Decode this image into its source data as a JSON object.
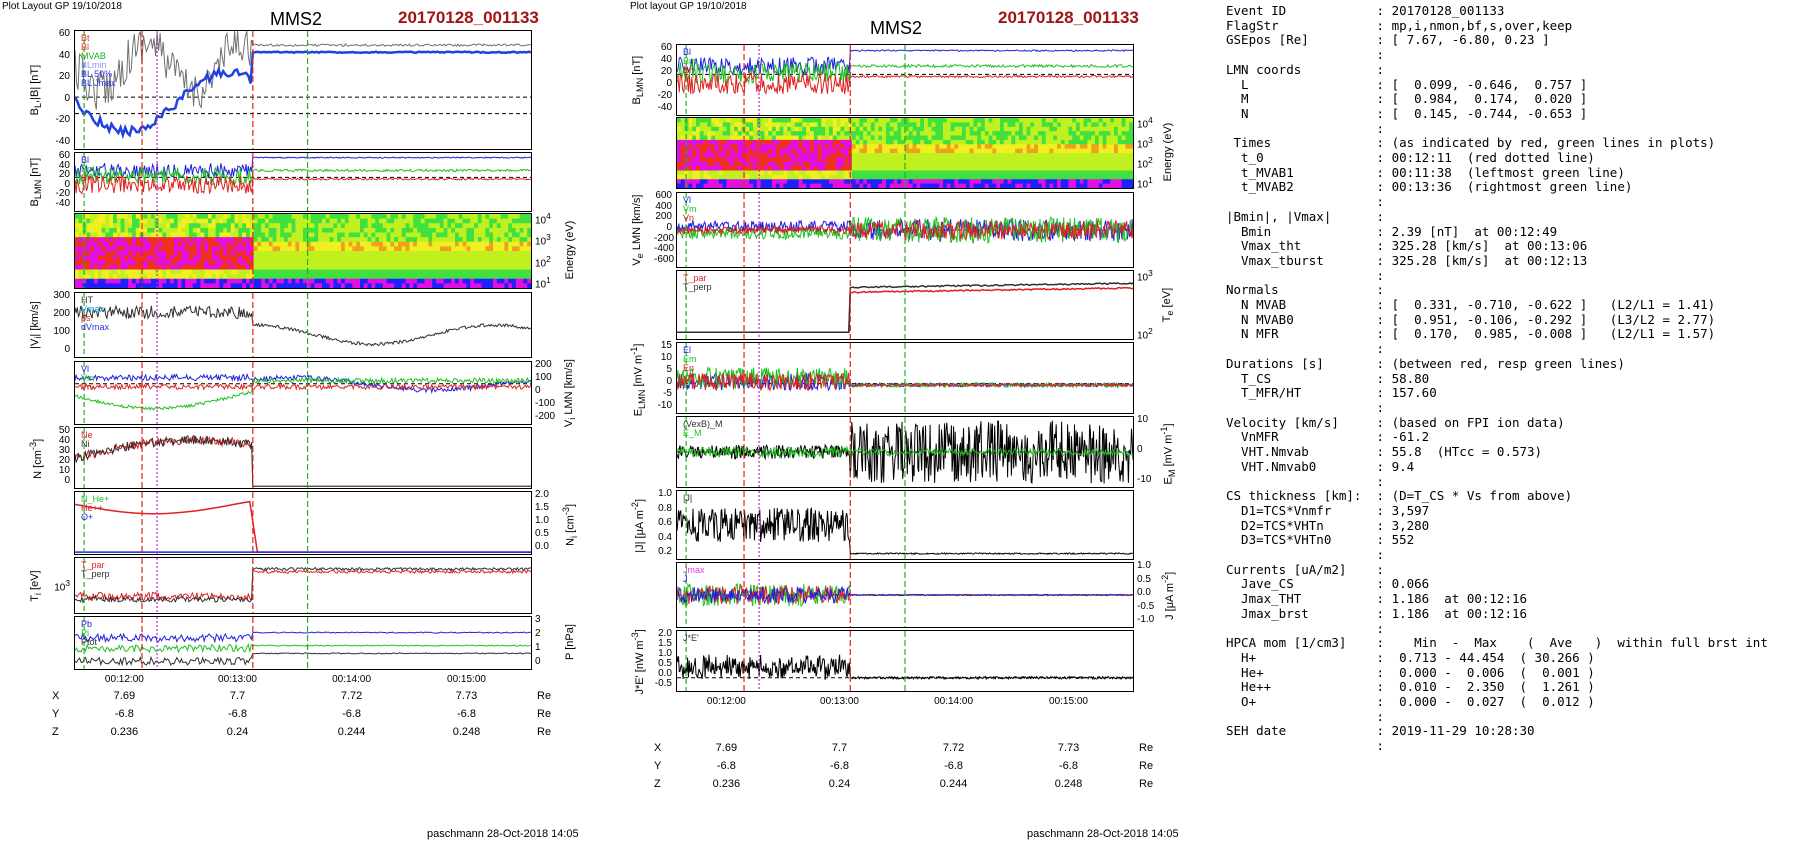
{
  "left_plot": {
    "layout_label": "Plot Layout GP 19/10/2018",
    "spacecraft": "MMS2",
    "event": "20170128_001133",
    "footer": "paschmann 28-Oct-2018 14:05",
    "time_ticks": [
      "00:12:00",
      "00:13:00",
      "00:14:00",
      "00:15:00"
    ],
    "coords": {
      "rows": [
        {
          "label": "X",
          "values": [
            "7.69",
            "7.7",
            "7.72",
            "7.73"
          ],
          "unit": "Re"
        },
        {
          "label": "Y",
          "values": [
            "-6.8",
            "-6.8",
            "-6.8",
            "-6.8"
          ],
          "unit": "Re"
        },
        {
          "label": "Z",
          "values": [
            "0.236",
            "0.24",
            "0.244",
            "0.248"
          ],
          "unit": "Re"
        }
      ]
    },
    "panels": [
      {
        "ylabel": "B_L,|B| [nT]",
        "yticks": [
          "60",
          "40",
          "20",
          "0",
          "-20",
          "-40"
        ],
        "legend": [
          "Bt",
          "Bl",
          "MVAB",
          "BLmin",
          "BL 50%",
          "BL Jmax"
        ],
        "legend_colors": [
          "#e03030",
          "#e03030",
          "#1fb01f",
          "#9090ff",
          "#3030e0",
          "#3030e0"
        ]
      },
      {
        "ylabel": "B_LMN [nT]",
        "yticks": [
          "60",
          "40",
          "20",
          "0",
          "-20",
          "-40"
        ],
        "legend": [
          "Bl",
          "Bm",
          "Bn"
        ],
        "legend_colors": [
          "#2020e0",
          "#20c020",
          "#e02020"
        ]
      },
      {
        "ylabel": "Energy (eV)",
        "yticks": [
          "10^4",
          "10^3",
          "10^2",
          "10^1"
        ],
        "legend": [],
        "legend_colors": []
      },
      {
        "ylabel": "|V_i| [km/s]",
        "yticks": [
          "300",
          "200",
          "100",
          "0"
        ],
        "legend": [
          "HT",
          "Vmax",
          "ps",
          "dVmax"
        ],
        "legend_colors": [
          "#303030",
          "#20a0e0",
          "#e02020",
          "#3030e0"
        ]
      },
      {
        "ylabel": "V_i LMN [km/s]",
        "yticks": [
          "200",
          "100",
          "0",
          "-100",
          "-200"
        ],
        "legend": [
          "Vl",
          "Vm",
          "Vn"
        ],
        "legend_colors": [
          "#2020e0",
          "#20c020",
          "#e02020"
        ]
      },
      {
        "ylabel": "N [cm^-3]",
        "yticks": [
          "50",
          "40",
          "30",
          "20",
          "10",
          "0"
        ],
        "legend": [
          "Ne",
          "Ni"
        ],
        "legend_colors": [
          "#e02020",
          "#303030"
        ]
      },
      {
        "ylabel": "N_i [cm^-3]",
        "yticks": [
          "2.0",
          "1.5",
          "1.0",
          "0.5",
          "0.0"
        ],
        "legend": [
          "N_He+",
          "He++",
          "O+"
        ],
        "legend_colors": [
          "#20c020",
          "#e02020",
          "#2020e0"
        ]
      },
      {
        "ylabel": "T_i [eV]",
        "yticks": [
          "10^3"
        ],
        "legend": [
          "T_par",
          "T_perp"
        ],
        "legend_colors": [
          "#e02020",
          "#303030"
        ]
      },
      {
        "ylabel": "P [nPa]",
        "yticks": [
          "3",
          "2",
          "1",
          "0"
        ],
        "legend": [
          "Pb",
          "Pi",
          "Ptot"
        ],
        "legend_colors": [
          "#2020e0",
          "#20c020",
          "#303030"
        ]
      }
    ]
  },
  "right_plot": {
    "layout_label": "Plot layout GP 19/10/2018",
    "spacecraft": "MMS2",
    "event": "20170128_001133",
    "footer": "paschmann 28-Oct-2018 14:05",
    "time_ticks": [
      "00:12:00",
      "00:13:00",
      "00:14:00",
      "00:15:00"
    ],
    "coords": {
      "rows": [
        {
          "label": "X",
          "values": [
            "7.69",
            "7.7",
            "7.72",
            "7.73"
          ],
          "unit": "Re"
        },
        {
          "label": "Y",
          "values": [
            "-6.8",
            "-6.8",
            "-6.8",
            "-6.8"
          ],
          "unit": "Re"
        },
        {
          "label": "Z",
          "values": [
            "0.236",
            "0.24",
            "0.244",
            "0.248"
          ],
          "unit": "Re"
        }
      ]
    },
    "panels": [
      {
        "ylabel": "B_LMN [nT]",
        "yticks": [
          "60",
          "40",
          "20",
          "0",
          "-20",
          "-40"
        ],
        "legend": [
          "Bl",
          "Bm",
          "Bn"
        ],
        "legend_colors": [
          "#2020e0",
          "#20c020",
          "#e02020"
        ]
      },
      {
        "ylabel": "Energy (eV)",
        "yticks": [
          "10^4",
          "10^3",
          "10^2",
          "10^1"
        ],
        "legend": [],
        "legend_colors": []
      },
      {
        "ylabel": "V_e LMN [km/s]",
        "yticks": [
          "600",
          "400",
          "200",
          "0",
          "-200",
          "-400",
          "-600"
        ],
        "legend": [
          "Vl",
          "Vm",
          "Vn"
        ],
        "legend_colors": [
          "#2020e0",
          "#20c020",
          "#e02020"
        ]
      },
      {
        "ylabel": "T_e [eV]",
        "yticks": [
          "10^3",
          "10^2"
        ],
        "legend": [
          "T_par",
          "T_perp"
        ],
        "legend_colors": [
          "#e02020",
          "#303030"
        ]
      },
      {
        "ylabel": "E_LMN [mV m^-1]",
        "yticks": [
          "15",
          "10",
          "5",
          "0",
          "-5",
          "-10"
        ],
        "legend": [
          "El",
          "Em",
          "En"
        ],
        "legend_colors": [
          "#2020e0",
          "#20c020",
          "#e02020"
        ]
      },
      {
        "ylabel": "E_M [mV m^-1]",
        "yticks": [
          "10",
          "0",
          "-10"
        ],
        "legend": [
          "(VexB)_M",
          "E_M"
        ],
        "legend_colors": [
          "#303030",
          "#20c020"
        ]
      },
      {
        "ylabel": "|J| [μA m^-2]",
        "yticks": [
          "1.0",
          "0.8",
          "0.6",
          "0.4",
          "0.2"
        ],
        "legend": [
          "|J|"
        ],
        "legend_colors": [
          "#303030"
        ]
      },
      {
        "ylabel": "J [μA m^-2]",
        "yticks": [
          "1.0",
          "0.5",
          "0.0",
          "-0.5",
          "-1.0"
        ],
        "legend": [
          "Jmax",
          "J"
        ],
        "legend_colors": [
          "#e040e0",
          "#2020e0"
        ]
      },
      {
        "ylabel": "J*E' [nW m^-3]",
        "yticks": [
          "2.0",
          "1.5",
          "1.0",
          "0.5",
          "0.0",
          "-0.5"
        ],
        "legend": [
          "J*E'"
        ],
        "legend_colors": [
          "#303030"
        ]
      }
    ]
  },
  "info_lines": [
    "Event ID            : 20170128_001133",
    "FlagStr             : mp,i,nmon,bf,s,over,keep",
    "GSEpos [Re]         : [ 7.67, -6.80, 0.23 ]",
    "                    :",
    "LMN coords          :",
    "  L                 : [  0.099, -0.646,  0.757 ]",
    "  M                 : [  0.984,  0.174,  0.020 ]",
    "  N                 : [  0.145, -0.744, -0.653 ]",
    "                    :",
    " Times              : (as indicated by red, green lines in plots)",
    "  t_0               : 00:12:11  (red dotted line)",
    "  t_MVAB1           : 00:11:38  (leftmost green line)",
    "  t_MVAB2           : 00:13:36  (rightmost green line)",
    "                    :",
    "|Bmin|, |Vmax|      :",
    "  Bmin              : 2.39 [nT]  at 00:12:49",
    "  Vmax_tht          : 325.28 [km/s]  at 00:13:06",
    "  Vmax_tburst       : 325.28 [km/s]  at 00:12:13",
    "                    :",
    "Normals             :",
    "  N MVAB            : [  0.331, -0.710, -0.622 ]   (L2/L1 = 1.41)",
    "  N MVAB0           : [  0.951, -0.106, -0.292 ]   (L3/L2 = 2.77)",
    "  N MFR             : [  0.170,  0.985, -0.008 ]   (L2/L1 = 1.57)",
    "                    :",
    "Durations [s]       : (between red, resp green lines)",
    "  T_CS              : 58.80",
    "  T_MFR/HT          : 157.60",
    "                    :",
    "Velocity [km/s]     : (based on FPI ion data)",
    "  VnMFR             : -61.2",
    "  VHT.Nmvab         : 55.8  (HTcc = 0.573)",
    "  VHT.Nmvab0        : 9.4",
    "                    :",
    "CS thickness [km]:  : (D=T_CS * Vs from above)",
    "  D1=TCS*Vnmfr      : 3,597",
    "  D2=TCS*VHTn       : 3,280",
    "  D3=TCS*VHTn0      : 552",
    "                    :",
    "Currents [uA/m2]    :",
    "  Jave_CS           : 0.066",
    "  Jmax_THT          : 1.186  at 00:12:16",
    "  Jmax_brst         : 1.186  at 00:12:16",
    "                    :",
    "HPCA mom [1/cm3]    :    Min  -  Max    (  Ave   )  within full brst int",
    "  H+                :  0.713 - 44.454  ( 30.266 )",
    "  He+               :  0.000 -  0.006  (  0.001 )",
    "  He++              :  0.010 -  2.350  (  1.261 )",
    "  O+                :  0.000 -  0.027  (  0.012 )",
    "                    :",
    "SEH date            : 2019-11-29 10:28:30",
    "                    :"
  ],
  "colors": {
    "event_red": "#a01414",
    "marker_red": "#e02020",
    "marker_green": "#20b020",
    "marker_magenta": "#d020d0",
    "marker_blue": "#2020e0"
  }
}
